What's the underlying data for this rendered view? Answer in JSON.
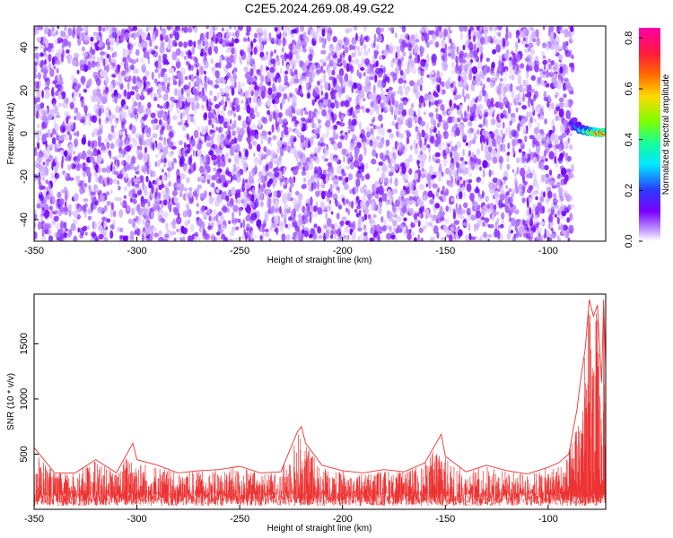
{
  "title": "C2E5.2024.269.08.49.G22",
  "chart_data": [
    {
      "type": "heatmap",
      "xlabel": "Height of straight line (km)",
      "ylabel": "Frequency (Hz)",
      "xlim": [
        -350,
        -72
      ],
      "ylim": [
        -50,
        50
      ],
      "xticks": [
        -350,
        -300,
        -250,
        -200,
        -150,
        -100
      ],
      "yticks": [
        -40,
        -20,
        0,
        20,
        40
      ],
      "colorbar": {
        "label": "Normalized spectral amplitude",
        "range": [
          0.0,
          0.84
        ],
        "ticks": [
          "0.0",
          "0.2",
          "0.4",
          "0.6",
          "0.8"
        ],
        "colors": [
          "#ffffff",
          "#b98cff",
          "#7a00ff",
          "#2a3cff",
          "#00e8ff",
          "#18ff9a",
          "#7cff00",
          "#ffd800",
          "#ff6a00",
          "#ff1a3c",
          "#ff00aa"
        ]
      },
      "noise": {
        "x_range": [
          -350,
          -88
        ],
        "y_range": [
          -50,
          50
        ],
        "amplitude_range": [
          0.02,
          0.14
        ]
      },
      "signal": [
        {
          "x": -88,
          "y": 5.5,
          "amplitude": 0.2
        },
        {
          "x": -86,
          "y": 3.5,
          "amplitude": 0.26
        },
        {
          "x": -84,
          "y": 2.0,
          "amplitude": 0.34
        },
        {
          "x": -82,
          "y": 1.5,
          "amplitude": 0.42
        },
        {
          "x": -80,
          "y": 1.0,
          "amplitude": 0.5
        },
        {
          "x": -78,
          "y": 0.8,
          "amplitude": 0.6
        },
        {
          "x": -76,
          "y": 0.5,
          "amplitude": 0.72
        },
        {
          "x": -74,
          "y": 0.5,
          "amplitude": 0.82
        },
        {
          "x": -73,
          "y": 0.5,
          "amplitude": 0.7
        }
      ]
    },
    {
      "type": "line",
      "xlabel": "Height of straight line (km)",
      "ylabel": "SNR (10 * v/v)",
      "xlim": [
        -350,
        -72
      ],
      "ylim": [
        0,
        1950
      ],
      "xticks": [
        -350,
        -300,
        -250,
        -200,
        -150,
        -100
      ],
      "yticks": [
        500,
        1000,
        1500
      ],
      "color": "#ee3333",
      "x": [
        -350,
        -340,
        -330,
        -320,
        -310,
        -302,
        -300,
        -290,
        -280,
        -270,
        -260,
        -250,
        -240,
        -230,
        -222,
        -220,
        -218,
        -210,
        -200,
        -190,
        -180,
        -170,
        -160,
        -152,
        -150,
        -140,
        -130,
        -120,
        -110,
        -100,
        -95,
        -90,
        -86,
        -84,
        -82,
        -80,
        -78,
        -76,
        -75,
        -74,
        -73,
        -72
      ],
      "y": [
        560,
        330,
        330,
        450,
        330,
        600,
        450,
        400,
        330,
        350,
        360,
        390,
        330,
        340,
        700,
        750,
        600,
        400,
        350,
        330,
        360,
        340,
        420,
        680,
        480,
        340,
        400,
        350,
        320,
        380,
        420,
        500,
        900,
        1200,
        1450,
        1900,
        1750,
        1850,
        1500,
        1150,
        1900,
        1300
      ],
      "floor": {
        "min": 30,
        "max": 150
      }
    }
  ]
}
